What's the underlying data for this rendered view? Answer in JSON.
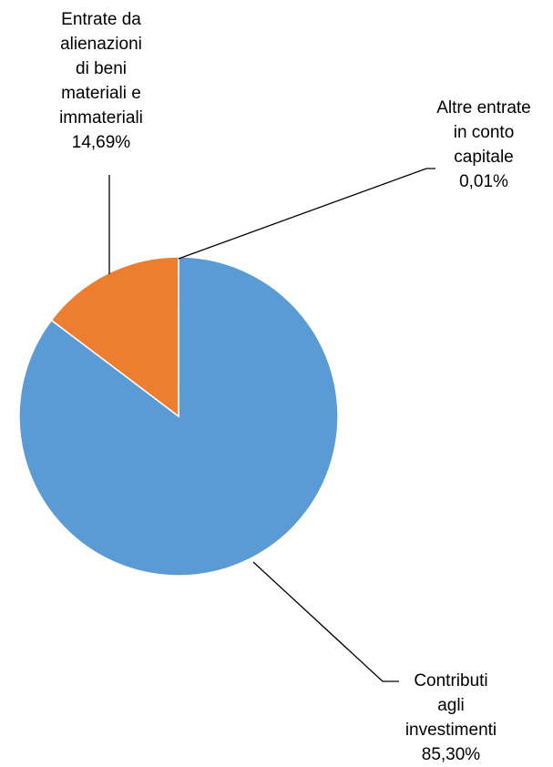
{
  "chart_data": {
    "type": "pie",
    "title": "",
    "legend": "none",
    "slices": [
      {
        "label_lines": [
          "Contributi",
          "agli",
          "investimenti"
        ],
        "value_label": "85,30%",
        "value": 85.3,
        "color": "#5B9BD5"
      },
      {
        "label_lines": [
          "Entrate da",
          "alienazioni",
          "di beni",
          "materiali e",
          "immateriali"
        ],
        "value_label": "14,69%",
        "value": 14.69,
        "color": "#ED7D31"
      },
      {
        "label_lines": [
          "Altre entrate",
          "in conto",
          "capitale"
        ],
        "value_label": "0,01%",
        "value": 0.01,
        "color": "#A5A5A5"
      }
    ]
  }
}
